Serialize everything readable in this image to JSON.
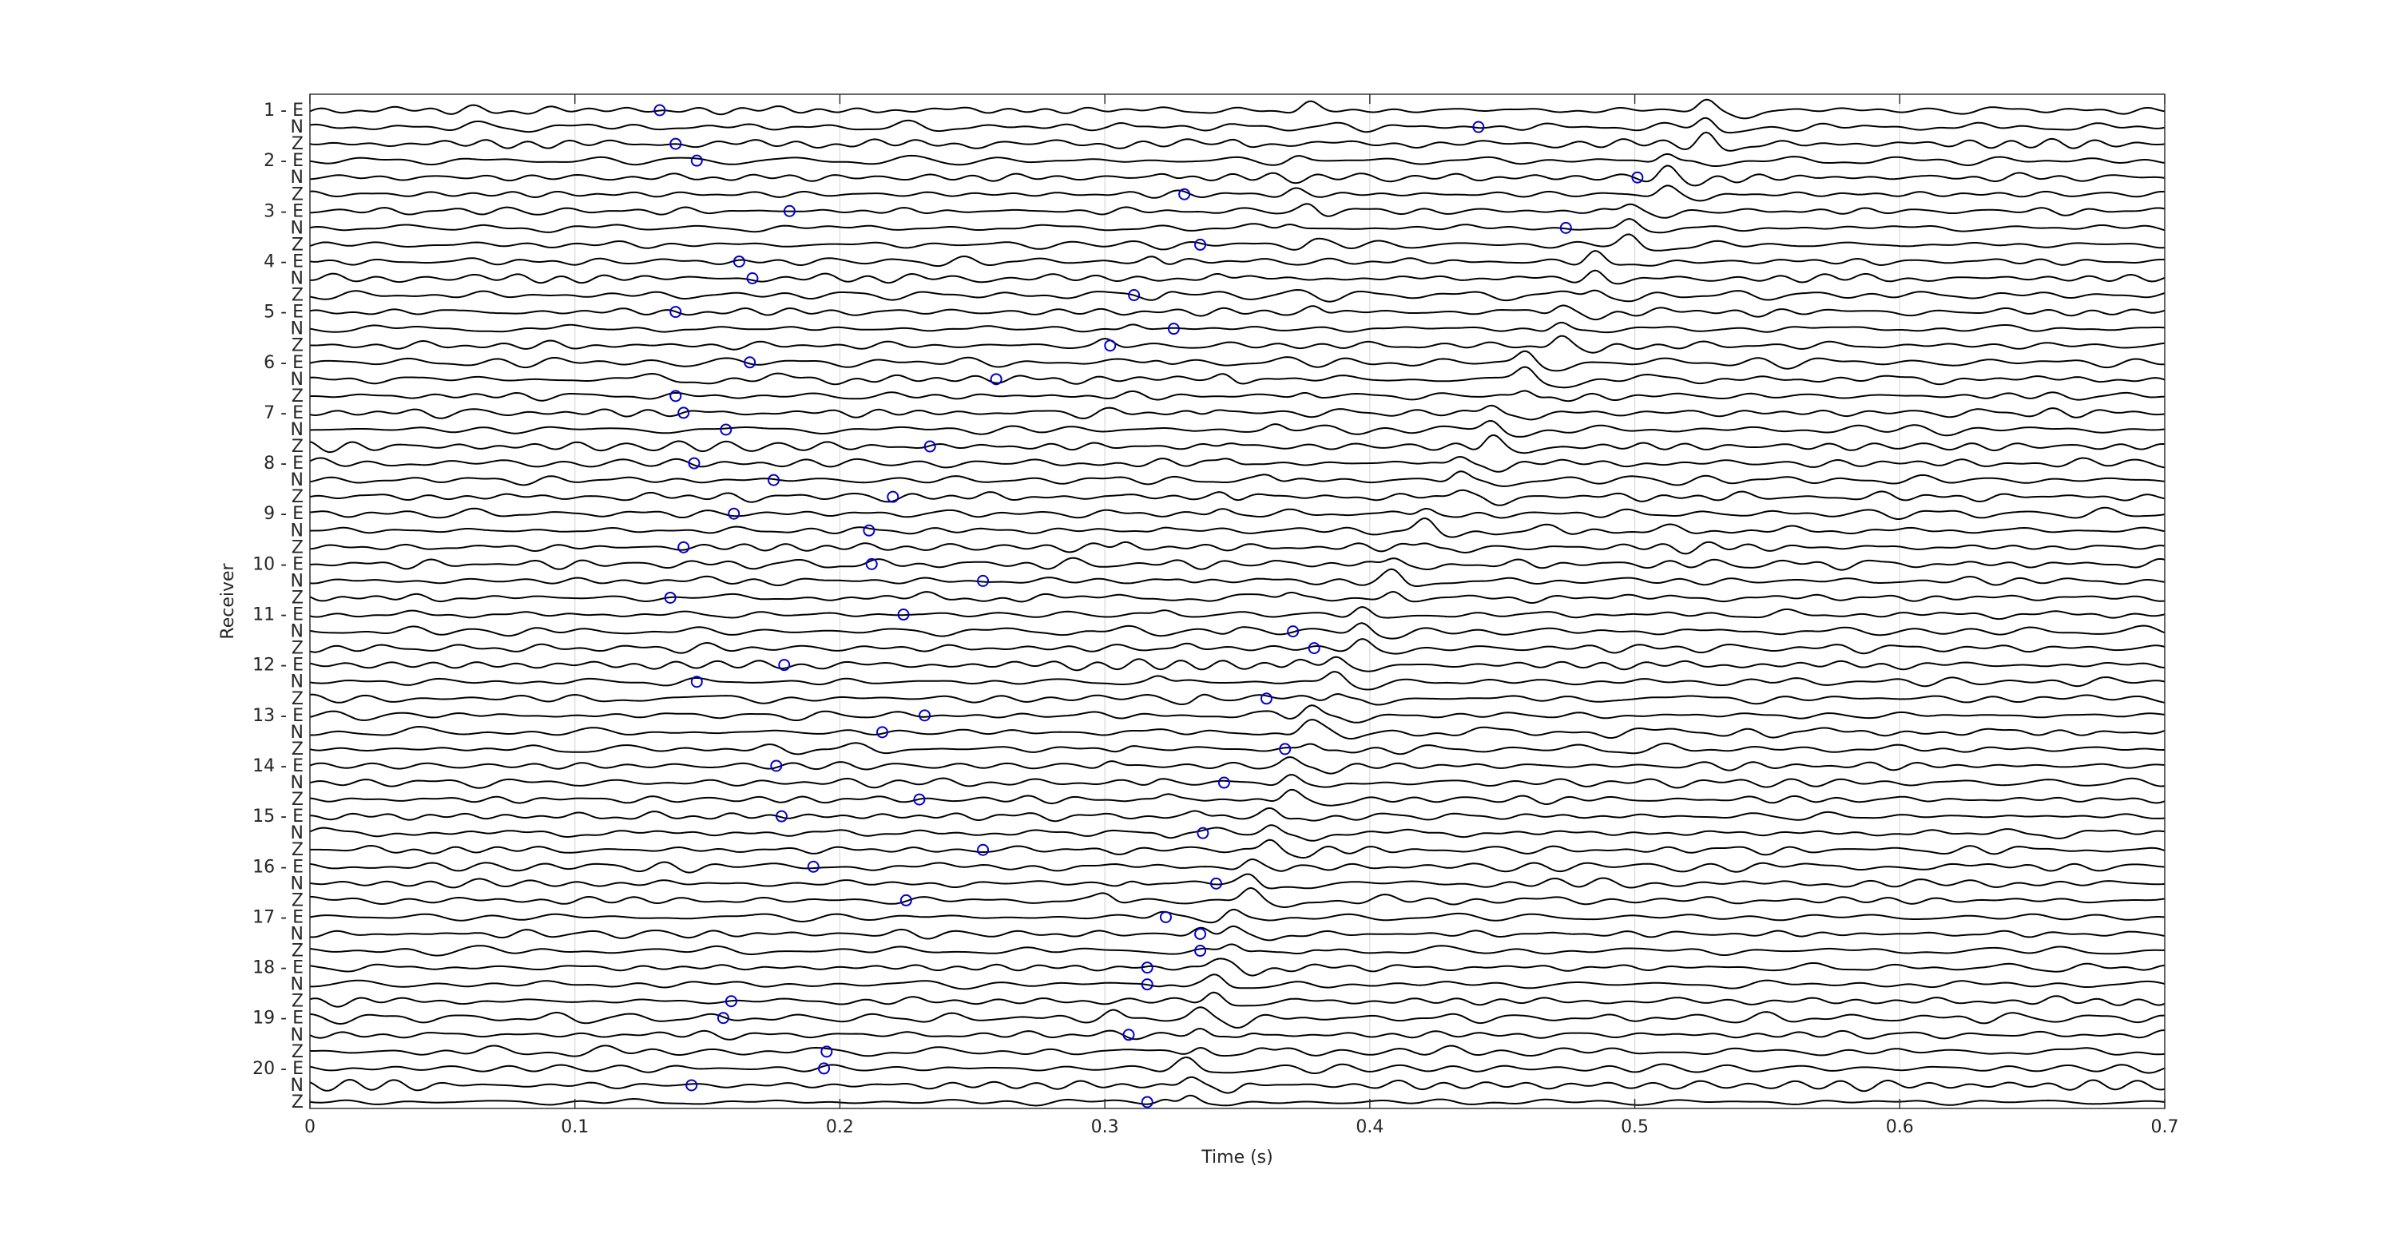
{
  "chart_data": {
    "type": "line",
    "title": "",
    "xlabel": "Time (s)",
    "ylabel": "Receiver",
    "xlim": [
      0,
      0.7
    ],
    "x_ticks": [
      0,
      0.1,
      0.2,
      0.3,
      0.4,
      0.5,
      0.6,
      0.7
    ],
    "x_tick_labels": [
      "0",
      "0.1",
      "0.2",
      "0.3",
      "0.4",
      "0.5",
      "0.6",
      "0.7"
    ],
    "grid": true,
    "legend": "none",
    "trace_color": "#000000",
    "pick_marker_color": "#0000cc",
    "pick_marker": "circle",
    "trace_labels": [
      "1 - E",
      "N",
      "Z",
      "2 - E",
      "N",
      "Z",
      "3 - E",
      "N",
      "Z",
      "4 - E",
      "N",
      "Z",
      "5 - E",
      "N",
      "Z",
      "6 - E",
      "N",
      "Z",
      "7 - E",
      "N",
      "Z",
      "8 - E",
      "N",
      "Z",
      "9 - E",
      "N",
      "Z",
      "10 - E",
      "N",
      "Z",
      "11 - E",
      "N",
      "Z",
      "12 - E",
      "N",
      "Z",
      "13 - E",
      "N",
      "Z",
      "14 - E",
      "N",
      "Z",
      "15 - E",
      "N",
      "Z",
      "16 - E",
      "N",
      "Z",
      "17 - E",
      "N",
      "Z",
      "18 - E",
      "N",
      "Z",
      "19 - E",
      "N",
      "Z",
      "20 - E",
      "N",
      "Z"
    ],
    "arrival_times_s": [
      0.527,
      0.527,
      0.527,
      0.512,
      0.512,
      0.512,
      0.498,
      0.498,
      0.498,
      0.485,
      0.485,
      0.485,
      0.472,
      0.472,
      0.472,
      0.459,
      0.459,
      0.459,
      0.446,
      0.446,
      0.446,
      0.434,
      0.434,
      0.434,
      0.421,
      0.421,
      0.421,
      0.409,
      0.409,
      0.409,
      0.397,
      0.397,
      0.397,
      0.387,
      0.387,
      0.387,
      0.378,
      0.378,
      0.378,
      0.37,
      0.37,
      0.37,
      0.363,
      0.363,
      0.363,
      0.355,
      0.355,
      0.355,
      0.348,
      0.348,
      0.348,
      0.342,
      0.342,
      0.342,
      0.336,
      0.336,
      0.336,
      0.332,
      0.332,
      0.332
    ],
    "picks_s": [
      0.132,
      0.441,
      0.138,
      0.146,
      0.501,
      0.33,
      0.181,
      0.474,
      0.336,
      0.162,
      0.167,
      0.311,
      0.138,
      0.326,
      0.302,
      0.166,
      0.259,
      0.138,
      0.141,
      0.157,
      0.234,
      0.145,
      0.175,
      0.22,
      0.16,
      0.211,
      0.141,
      0.212,
      0.254,
      0.136,
      0.224,
      0.371,
      0.379,
      0.179,
      0.146,
      0.361,
      0.232,
      0.216,
      0.368,
      0.176,
      0.345,
      0.23,
      0.178,
      0.337,
      0.254,
      0.19,
      0.342,
      0.225,
      0.323,
      0.336,
      0.336,
      0.316,
      0.316,
      0.159,
      0.156,
      0.309,
      0.195,
      0.194,
      0.144,
      0.316
    ]
  }
}
